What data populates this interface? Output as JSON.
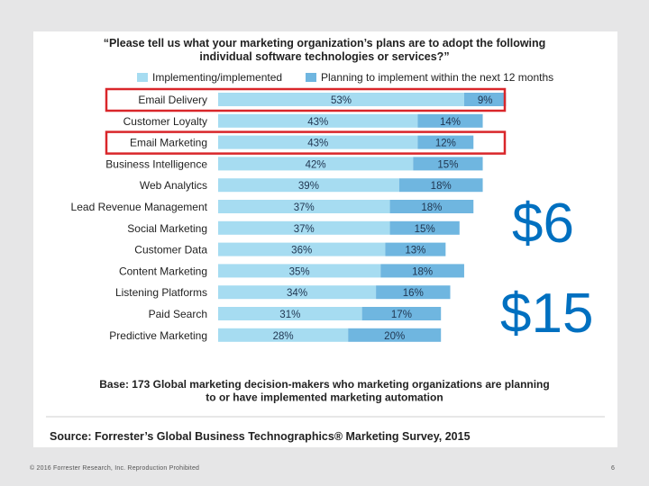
{
  "slide": {
    "footer_copyright": "© 2016 Forrester Research, Inc. Reproduction Prohibited",
    "page_number": "6",
    "cost_labels": [
      "$6",
      "$15"
    ]
  },
  "chart_data": {
    "type": "bar",
    "title_lines": [
      "“Please tell us what your marketing organization’s plans are to adopt the following",
      "individual software technologies or services?”"
    ],
    "legend_position": "top",
    "series": [
      {
        "name": "Implementing/implemented",
        "color": "#a6dcf1",
        "values": [
          53,
          43,
          43,
          42,
          39,
          37,
          37,
          36,
          35,
          34,
          31,
          28
        ]
      },
      {
        "name": "Planning to implement within the next 12 months",
        "color": "#6fb6e0",
        "values": [
          9,
          14,
          12,
          15,
          18,
          18,
          15,
          13,
          18,
          16,
          17,
          20
        ]
      }
    ],
    "categories": [
      "Email Delivery",
      "Customer Loyalty",
      "Email Marketing",
      "Business Intelligence",
      "Web Analytics",
      "Lead Revenue Management",
      "Social Marketing",
      "Customer Data",
      "Content Marketing",
      "Listening Platforms",
      "Paid Search",
      "Predictive Marketing"
    ],
    "highlighted_categories": [
      "Email Delivery",
      "Email Marketing"
    ],
    "highlight_color": "#d9262a",
    "stacked": true,
    "value_suffix": "%",
    "base_note_lines": [
      "Base: 173 Global marketing decision-makers who marketing organizations are planning",
      "to or have implemented marketing automation"
    ],
    "source": "Source: Forrester’s Global Business Technographics® Marketing Survey, 2015"
  }
}
